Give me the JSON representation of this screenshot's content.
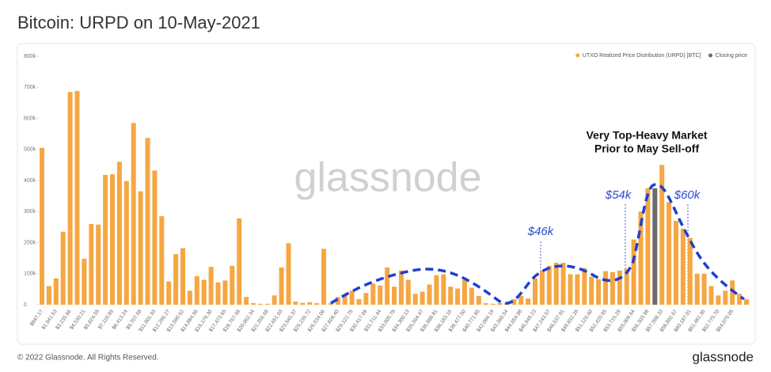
{
  "chart_data": {
    "type": "bar",
    "title": "Bitcoin: URPD on 10-May-2021",
    "annotations": [
      "Very Top-Heavy Market",
      "Prior to May Sell-off",
      "$46k",
      "$54k",
      "$60k"
    ],
    "watermark": "glassnode",
    "footer": "© 2022 Glassnode. All Rights Reserved.",
    "brand": "glassnode",
    "categories": [
      "$847.17",
      null,
      "$1,941.53",
      null,
      "$3,235.66",
      null,
      "$4,530.21",
      null,
      "$5,824.55",
      null,
      "$7,118.89",
      null,
      "$8,413.24",
      null,
      "$9,707.58",
      null,
      "$11,001.93",
      null,
      "$12,296.27",
      null,
      "$13,590.62",
      null,
      "$14,884.96",
      null,
      "$16,179.30",
      null,
      "$17,473.65",
      null,
      "$18,767.99",
      null,
      "$20,062.34",
      null,
      "$21,356.68",
      null,
      "$22,651.03",
      null,
      "$23,945.37",
      null,
      "$25,239.72",
      null,
      "$26,534.06",
      null,
      "$27,828.40",
      null,
      "$29,122.75",
      null,
      "$30,417.09",
      null,
      "$31,711.44",
      null,
      "$33,005.78",
      null,
      "$34,300.13",
      null,
      "$35,594.47",
      null,
      "$36,888.81",
      null,
      "$38,183.16",
      null,
      "$39,477.50",
      null,
      "$40,771.85",
      null,
      "$42,066.19",
      null,
      "$43,360.54",
      null,
      "$44,654.88",
      null,
      "$45,949.23",
      null,
      "$47,243.57",
      null,
      "$48,537.91",
      null,
      "$49,832.26",
      null,
      "$51,126.60",
      null,
      "$52,420.95",
      null,
      "$53,715.29",
      null,
      "$55,009.64",
      null,
      "$56,303.98",
      null,
      "$57,598.33",
      null,
      "$58,892.67",
      null,
      "$60,187.01",
      null,
      "$61,481.36",
      null,
      "$62,775.70",
      null,
      "$64,070.05",
      null,
      null
    ],
    "series": [
      {
        "name": "UTXO Realized Price Distribution (URPD) [BTC]",
        "color": "#f5a742",
        "values": [
          505000,
          60000,
          85000,
          235000,
          685000,
          688000,
          148000,
          260000,
          258000,
          418000,
          420000,
          460000,
          398000,
          585000,
          365000,
          537000,
          432000,
          285000,
          75000,
          163000,
          182000,
          45000,
          92000,
          80000,
          122000,
          72000,
          78000,
          125000,
          278000,
          25000,
          5000,
          3000,
          3000,
          30000,
          120000,
          198000,
          10000,
          6000,
          8000,
          5000,
          180000,
          5000,
          25000,
          30000,
          45000,
          18000,
          38000,
          68000,
          62000,
          120000,
          58000,
          110000,
          80000,
          35000,
          42000,
          65000,
          95000,
          98000,
          58000,
          52000,
          80000,
          55000,
          28000,
          5000,
          3000,
          5000,
          8000,
          18000,
          28000,
          20000,
          85000,
          110000,
          125000,
          135000,
          135000,
          98000,
          98000,
          118000,
          90000,
          82000,
          108000,
          105000,
          110000,
          115000,
          210000,
          300000,
          375000,
          null,
          450000,
          330000,
          270000,
          245000,
          215000,
          100000,
          100000,
          60000,
          30000,
          45000,
          78000,
          35000,
          18000
        ]
      },
      {
        "name": "Closing price",
        "color": "#6b6b6b",
        "values": [
          null,
          null,
          null,
          null,
          null,
          null,
          null,
          null,
          null,
          null,
          null,
          null,
          null,
          null,
          null,
          null,
          null,
          null,
          null,
          null,
          null,
          null,
          null,
          null,
          null,
          null,
          null,
          null,
          null,
          null,
          null,
          null,
          null,
          null,
          null,
          null,
          null,
          null,
          null,
          null,
          null,
          null,
          null,
          null,
          null,
          null,
          null,
          null,
          null,
          null,
          null,
          null,
          null,
          null,
          null,
          null,
          null,
          null,
          null,
          null,
          null,
          null,
          null,
          null,
          null,
          null,
          null,
          null,
          null,
          null,
          null,
          null,
          null,
          null,
          null,
          null,
          null,
          null,
          null,
          null,
          null,
          null,
          null,
          null,
          null,
          null,
          null,
          375000,
          null,
          null,
          null,
          null,
          null,
          null,
          null,
          null,
          null,
          null,
          null,
          null,
          null
        ]
      }
    ],
    "ylim": [
      0,
      800000
    ],
    "yticks": [
      0,
      {
        "value": 100000,
        "label": "100k"
      },
      {
        "value": 200000,
        "label": "200k"
      },
      {
        "value": 300000,
        "label": "300k"
      },
      {
        "value": 400000,
        "label": "400k"
      },
      {
        "value": 500000,
        "label": "500k"
      },
      {
        "value": 600000,
        "label": "600k"
      },
      {
        "value": 700000,
        "label": "700k"
      },
      {
        "value": 800000,
        "label": "800k"
      }
    ],
    "grid": false,
    "legend": "top-right"
  }
}
